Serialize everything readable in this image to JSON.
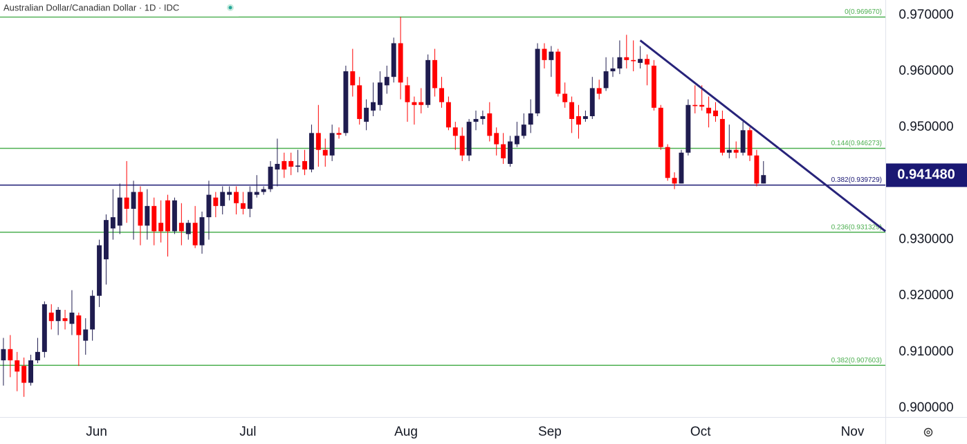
{
  "chart_data": {
    "type": "candlestick",
    "title": "Australian Dollar/Canadian Dollar · 1D · IDC",
    "up_color": "#1f1c4f",
    "down_color": "#ff0000",
    "open": [
      0.9085,
      0.9105,
      0.9085,
      0.9075,
      0.9045,
      0.9085,
      0.91,
      0.917,
      0.9155,
      0.916,
      0.915,
      0.9165,
      0.912,
      0.914,
      0.92,
      0.9265,
      0.932,
      0.9325,
      0.9375,
      0.9355,
      0.9385,
      0.9325,
      0.936,
      0.933,
      0.937,
      0.9315,
      0.933,
      0.931,
      0.933,
      0.929,
      0.934,
      0.9375,
      0.936,
      0.938,
      0.9385,
      0.9365,
      0.9355,
      0.938,
      0.9385,
      0.939,
      0.9425,
      0.944,
      0.944,
      0.943,
      0.944,
      0.9425,
      0.949,
      0.946,
      0.945,
      0.949,
      0.949,
      0.96,
      0.9575,
      0.951,
      0.953,
      0.954,
      0.9575,
      0.959,
      0.965,
      0.9575,
      0.9545,
      0.9545,
      0.954,
      0.962,
      0.957,
      0.9545,
      0.95,
      0.9485,
      0.945,
      0.951,
      0.9515,
      0.9525,
      0.949,
      0.947,
      0.9435,
      0.947,
      0.9485,
      0.9505,
      0.9525,
      0.964,
      0.962,
      0.9635,
      0.956,
      0.9545,
      0.952,
      0.9515,
      0.952,
      0.957,
      0.957,
      0.96,
      0.9605,
      0.9625,
      0.962,
      0.9615,
      0.9622,
      0.961,
      0.9535,
      0.9465,
      0.941,
      0.94,
      0.9455,
      0.954,
      0.954,
      0.9535,
      0.953,
      0.9515,
      0.9455,
      0.946,
      0.9455,
      0.9495,
      0.945,
      0.94
    ],
    "high": [
      0.9125,
      0.913,
      0.91,
      0.909,
      0.9095,
      0.9125,
      0.919,
      0.9185,
      0.918,
      0.9175,
      0.921,
      0.917,
      0.916,
      0.921,
      0.93,
      0.9345,
      0.939,
      0.94,
      0.944,
      0.9405,
      0.9395,
      0.939,
      0.9375,
      0.937,
      0.938,
      0.9375,
      0.9365,
      0.9335,
      0.936,
      0.935,
      0.9405,
      0.9385,
      0.9395,
      0.9395,
      0.9395,
      0.9385,
      0.9395,
      0.9415,
      0.9395,
      0.944,
      0.948,
      0.9455,
      0.9455,
      0.946,
      0.946,
      0.9505,
      0.954,
      0.948,
      0.9505,
      0.95,
      0.961,
      0.964,
      0.959,
      0.955,
      0.958,
      0.96,
      0.961,
      0.966,
      0.9697,
      0.959,
      0.9555,
      0.957,
      0.963,
      0.964,
      0.959,
      0.9555,
      0.951,
      0.95,
      0.9515,
      0.953,
      0.953,
      0.9545,
      0.95,
      0.949,
      0.9485,
      0.951,
      0.9525,
      0.955,
      0.965,
      0.965,
      0.9645,
      0.964,
      0.958,
      0.9555,
      0.954,
      0.953,
      0.959,
      0.9585,
      0.9625,
      0.9625,
      0.9655,
      0.9665,
      0.9655,
      0.9645,
      0.963,
      0.962,
      0.954,
      0.947,
      0.942,
      0.946,
      0.955,
      0.9575,
      0.9575,
      0.9555,
      0.9545,
      0.953,
      0.9505,
      0.9475,
      0.951,
      0.95,
      0.946,
      0.944
    ],
    "low": [
      0.904,
      0.9055,
      0.903,
      0.902,
      0.904,
      0.908,
      0.909,
      0.914,
      0.913,
      0.914,
      0.913,
      0.9075,
      0.9095,
      0.912,
      0.918,
      0.922,
      0.93,
      0.931,
      0.933,
      0.93,
      0.929,
      0.93,
      0.929,
      0.9295,
      0.927,
      0.931,
      0.929,
      0.93,
      0.9285,
      0.9275,
      0.93,
      0.934,
      0.9345,
      0.937,
      0.9345,
      0.9345,
      0.934,
      0.9375,
      0.938,
      0.9385,
      0.9395,
      0.941,
      0.9415,
      0.942,
      0.9415,
      0.942,
      0.943,
      0.943,
      0.944,
      0.948,
      0.9485,
      0.9555,
      0.9505,
      0.9495,
      0.952,
      0.953,
      0.956,
      0.958,
      0.955,
      0.951,
      0.9505,
      0.9525,
      0.9535,
      0.9555,
      0.9535,
      0.9495,
      0.946,
      0.944,
      0.944,
      0.9495,
      0.9505,
      0.9475,
      0.945,
      0.9435,
      0.943,
      0.9465,
      0.948,
      0.949,
      0.952,
      0.9605,
      0.959,
      0.9555,
      0.9535,
      0.949,
      0.948,
      0.951,
      0.9515,
      0.955,
      0.9565,
      0.959,
      0.9595,
      0.9605,
      0.96,
      0.9605,
      0.9575,
      0.953,
      0.946,
      0.9405,
      0.939,
      0.94,
      0.945,
      0.9525,
      0.953,
      0.95,
      0.951,
      0.945,
      0.9445,
      0.9445,
      0.945,
      0.944,
      0.9395,
      0.94
    ],
    "close": [
      0.9105,
      0.9085,
      0.9065,
      0.9045,
      0.9085,
      0.91,
      0.9185,
      0.9155,
      0.9175,
      0.9155,
      0.917,
      0.913,
      0.914,
      0.92,
      0.929,
      0.9335,
      0.934,
      0.9375,
      0.9355,
      0.9385,
      0.9325,
      0.936,
      0.9315,
      0.9315,
      0.9315,
      0.937,
      0.9315,
      0.933,
      0.929,
      0.934,
      0.938,
      0.936,
      0.9385,
      0.9385,
      0.9365,
      0.9355,
      0.9385,
      0.9385,
      0.939,
      0.943,
      0.9435,
      0.9425,
      0.943,
      0.9432,
      0.9425,
      0.949,
      0.946,
      0.945,
      0.949,
      0.9487,
      0.96,
      0.9575,
      0.9515,
      0.9535,
      0.9545,
      0.958,
      0.959,
      0.965,
      0.958,
      0.9545,
      0.954,
      0.954,
      0.962,
      0.957,
      0.9545,
      0.95,
      0.9485,
      0.945,
      0.951,
      0.9515,
      0.952,
      0.9485,
      0.947,
      0.9445,
      0.9475,
      0.9485,
      0.9505,
      0.9525,
      0.964,
      0.962,
      0.9635,
      0.956,
      0.9545,
      0.9515,
      0.9505,
      0.952,
      0.957,
      0.956,
      0.96,
      0.9605,
      0.9625,
      0.962,
      0.9618,
      0.9622,
      0.9612,
      0.9535,
      0.9465,
      0.941,
      0.94,
      0.9455,
      0.954,
      0.9538,
      0.9537,
      0.9525,
      0.952,
      0.9455,
      0.946,
      0.9455,
      0.9495,
      0.945,
      0.94,
      0.9415
    ],
    "xlim": [
      -0.5,
      128.8
    ],
    "xticks": [
      {
        "value": 13.6,
        "label": "Jun"
      },
      {
        "value": 35.7,
        "label": "Jul"
      },
      {
        "value": 58.8,
        "label": "Aug"
      },
      {
        "value": 79.8,
        "label": "Sep"
      },
      {
        "value": 101.8,
        "label": "Oct"
      },
      {
        "value": 124,
        "label": "Nov"
      }
    ],
    "ylim": [
      0.8984,
      0.9727
    ],
    "yticks": [
      {
        "value": 0.9,
        "label": "0.900000"
      },
      {
        "value": 0.91,
        "label": "0.910000"
      },
      {
        "value": 0.92,
        "label": "0.920000"
      },
      {
        "value": 0.93,
        "label": "0.930000"
      },
      {
        "value": 0.95,
        "label": "0.950000"
      },
      {
        "value": 0.96,
        "label": "0.960000"
      },
      {
        "value": 0.97,
        "label": "0.970000"
      }
    ],
    "levels": [
      {
        "value": 0.96967,
        "label": "0(0.969670)",
        "color": "#4caf50"
      },
      {
        "value": 0.946273,
        "label": "0.144(0.946273)",
        "color": "#4caf50"
      },
      {
        "value": 0.939729,
        "label": "0.382(0.939729)",
        "color": "#1a1873"
      },
      {
        "value": 0.931329,
        "label": "0.236(0.931329)",
        "color": "#4caf50"
      },
      {
        "value": 0.907603,
        "label": "0.382(0.907603)",
        "color": "#4caf50"
      }
    ],
    "trendline": {
      "x": [
        93,
        128.8
      ],
      "y": [
        0.9655,
        0.9315
      ],
      "color": "#27237a"
    },
    "last_price": {
      "value": 0.94148,
      "label": "0.941480",
      "color": "#1a1873"
    }
  }
}
